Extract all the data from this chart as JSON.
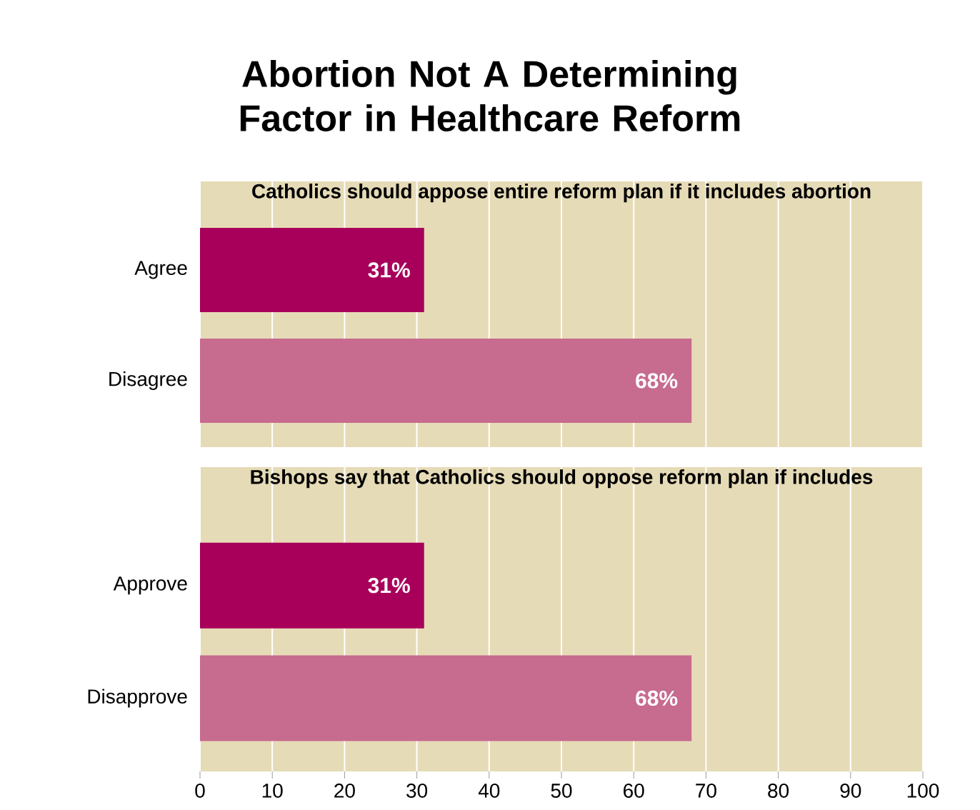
{
  "chart_data": [
    {
      "type": "bar",
      "orientation": "horizontal",
      "title": "Abortion Not A Determining Factor in Healthcare Reform",
      "subtitle": "Catholics should appose entire reform plan if it includes abortion",
      "categories": [
        "Agree",
        "Disagree"
      ],
      "values": [
        31,
        68
      ],
      "colors": [
        "#a8005a",
        "#c76b8f"
      ],
      "value_labels": [
        "31%",
        "68%"
      ],
      "xlim": [
        0,
        100
      ],
      "xticks": [
        0,
        10,
        20,
        30,
        40,
        50,
        60,
        70,
        80,
        90,
        100
      ],
      "grid": "x",
      "tick_labels": "y"
    },
    {
      "type": "bar",
      "orientation": "horizontal",
      "subtitle": "Bishops say that Catholics should oppose reform plan if includes",
      "categories": [
        "Approve",
        "Disapprove"
      ],
      "values": [
        31,
        68
      ],
      "colors": [
        "#a8005a",
        "#c76b8f"
      ],
      "value_labels": [
        "31%",
        "68%"
      ],
      "xlim": [
        0,
        100
      ],
      "xticks": [
        0,
        10,
        20,
        30,
        40,
        50,
        60,
        70,
        80,
        90,
        100
      ],
      "grid": "x"
    }
  ]
}
